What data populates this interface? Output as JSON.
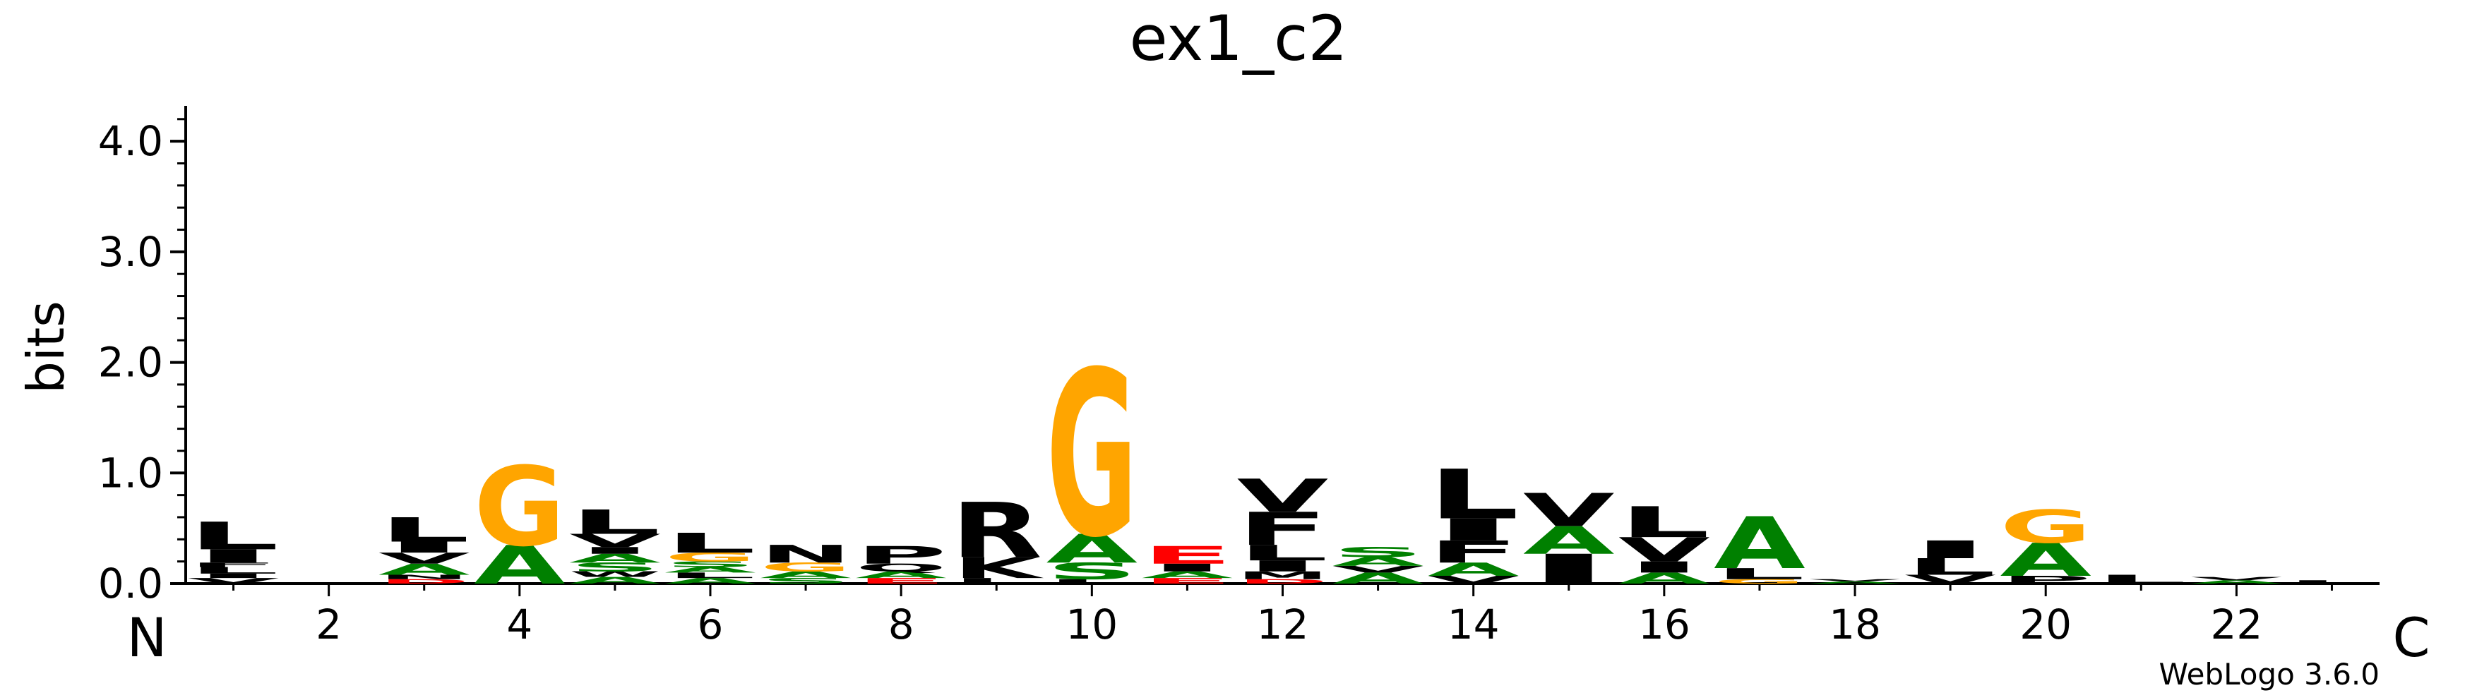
{
  "chart_data": {
    "type": "sequence-logo",
    "title": "ex1_c2",
    "ylabel": "bits",
    "xlabel_left": "N",
    "xlabel_right": "C",
    "ylim": [
      0,
      4.32
    ],
    "xlim": [
      0.5,
      23.5
    ],
    "y_ticks": [
      "0.0",
      "1.0",
      "2.0",
      "3.0",
      "4.0"
    ],
    "y_tick_values": [
      0,
      1,
      2,
      3,
      4
    ],
    "x_ticks": [
      "2",
      "4",
      "6",
      "8",
      "10",
      "12",
      "14",
      "16",
      "18",
      "20",
      "22"
    ],
    "x_tick_values": [
      2,
      4,
      6,
      8,
      10,
      12,
      14,
      16,
      18,
      20,
      22
    ],
    "colors": {
      "G": "#FFA500",
      "A": "#008000",
      "S": "#008000",
      "T": "#008000",
      "R": "#000000",
      "K": "#000000",
      "D": "#FF0000",
      "E": "#FF0000",
      "default": "#000000"
    },
    "columns": [
      {
        "pos": 1,
        "stack": [
          {
            "l": "V",
            "h": 0.05
          },
          {
            "l": "I",
            "h": 0.04
          },
          {
            "l": "L",
            "h": 0.06
          },
          {
            "l": "F",
            "h": 0.04
          },
          {
            "l": "I",
            "h": 0.12
          },
          {
            "l": "L",
            "h": 0.25
          }
        ]
      },
      {
        "pos": 2,
        "stack": []
      },
      {
        "pos": 3,
        "stack": [
          {
            "l": "D",
            "h": 0.04
          },
          {
            "l": "N",
            "h": 0.04
          },
          {
            "l": "A",
            "h": 0.1
          },
          {
            "l": "V",
            "h": 0.1
          },
          {
            "l": "I",
            "h": 0.1
          },
          {
            "l": "L",
            "h": 0.22
          }
        ]
      },
      {
        "pos": 4,
        "stack": [
          {
            "l": "A",
            "h": 0.35
          },
          {
            "l": "G",
            "h": 0.72
          }
        ]
      },
      {
        "pos": 5,
        "stack": [
          {
            "l": "A",
            "h": 0.06
          },
          {
            "l": "W",
            "h": 0.05
          },
          {
            "l": "S",
            "h": 0.08
          },
          {
            "l": "A",
            "h": 0.08
          },
          {
            "l": "I",
            "h": 0.06
          },
          {
            "l": "V",
            "h": 0.12
          },
          {
            "l": "L",
            "h": 0.22
          }
        ]
      },
      {
        "pos": 6,
        "stack": [
          {
            "l": "A",
            "h": 0.05
          },
          {
            "l": "L",
            "h": 0.05
          },
          {
            "l": "A",
            "h": 0.05
          },
          {
            "l": "S",
            "h": 0.05
          },
          {
            "l": "G",
            "h": 0.08
          },
          {
            "l": "L",
            "h": 0.18
          }
        ]
      },
      {
        "pos": 7,
        "stack": [
          {
            "l": "S",
            "h": 0.05
          },
          {
            "l": "A",
            "h": 0.06
          },
          {
            "l": "G",
            "h": 0.08
          },
          {
            "l": "N",
            "h": 0.16
          }
        ]
      },
      {
        "pos": 8,
        "stack": [
          {
            "l": "E",
            "h": 0.05
          },
          {
            "l": "A",
            "h": 0.06
          },
          {
            "l": "Q",
            "h": 0.07
          },
          {
            "l": "P",
            "h": 0.16
          }
        ]
      },
      {
        "pos": 9,
        "stack": [
          {
            "l": "L",
            "h": 0.05
          },
          {
            "l": "K",
            "h": 0.19
          },
          {
            "l": "R",
            "h": 0.5
          }
        ]
      },
      {
        "pos": 10,
        "stack": [
          {
            "l": "L",
            "h": 0.04
          },
          {
            "l": "S",
            "h": 0.15
          },
          {
            "l": "A",
            "h": 0.26
          },
          {
            "l": "G",
            "h": 1.5
          }
        ]
      },
      {
        "pos": 11,
        "stack": [
          {
            "l": "E",
            "h": 0.05
          },
          {
            "l": "A",
            "h": 0.06
          },
          {
            "l": "I",
            "h": 0.07
          },
          {
            "l": "E",
            "h": 0.16
          }
        ]
      },
      {
        "pos": 12,
        "stack": [
          {
            "l": "D",
            "h": 0.04
          },
          {
            "l": "M",
            "h": 0.07
          },
          {
            "l": "I",
            "h": 0.1
          },
          {
            "l": "L",
            "h": 0.14
          },
          {
            "l": "F",
            "h": 0.3
          },
          {
            "l": "V",
            "h": 0.3
          }
        ]
      },
      {
        "pos": 13,
        "stack": [
          {
            "l": "A",
            "h": 0.1
          },
          {
            "l": "V",
            "h": 0.06
          },
          {
            "l": "A",
            "h": 0.08
          },
          {
            "l": "S",
            "h": 0.09
          }
        ]
      },
      {
        "pos": 14,
        "stack": [
          {
            "l": "V",
            "h": 0.07
          },
          {
            "l": "A",
            "h": 0.12
          },
          {
            "l": "F",
            "h": 0.2
          },
          {
            "l": "I",
            "h": 0.2
          },
          {
            "l": "L",
            "h": 0.45
          }
        ]
      },
      {
        "pos": 15,
        "stack": [
          {
            "l": "I",
            "h": 0.27
          },
          {
            "l": "A",
            "h": 0.25
          },
          {
            "l": "V",
            "h": 0.3
          }
        ]
      },
      {
        "pos": 16,
        "stack": [
          {
            "l": "A",
            "h": 0.1
          },
          {
            "l": "I",
            "h": 0.1
          },
          {
            "l": "V",
            "h": 0.22
          },
          {
            "l": "L",
            "h": 0.28
          }
        ]
      },
      {
        "pos": 17,
        "stack": [
          {
            "l": "G",
            "h": 0.04
          },
          {
            "l": "L",
            "h": 0.1
          },
          {
            "l": "A",
            "h": 0.47
          }
        ]
      },
      {
        "pos": 18,
        "stack": [
          {
            "l": "A",
            "h": 0.02
          },
          {
            "l": "V",
            "h": 0.02
          }
        ]
      },
      {
        "pos": 19,
        "stack": [
          {
            "l": "V",
            "h": 0.08
          },
          {
            "l": "L",
            "h": 0.15
          },
          {
            "l": "I",
            "h": 0.16
          }
        ]
      },
      {
        "pos": 20,
        "stack": [
          {
            "l": "P",
            "h": 0.07
          },
          {
            "l": "A",
            "h": 0.3
          },
          {
            "l": "G",
            "h": 0.3
          }
        ]
      },
      {
        "pos": 21,
        "stack": [
          {
            "l": "L",
            "h": 0.08
          }
        ]
      },
      {
        "pos": 22,
        "stack": [
          {
            "l": "A",
            "h": 0.03
          },
          {
            "l": "V",
            "h": 0.03
          }
        ]
      },
      {
        "pos": 23,
        "stack": [
          {
            "l": "L",
            "h": 0.03
          }
        ]
      }
    ]
  },
  "footer": {
    "credit": "WebLogo 3.6.0"
  }
}
